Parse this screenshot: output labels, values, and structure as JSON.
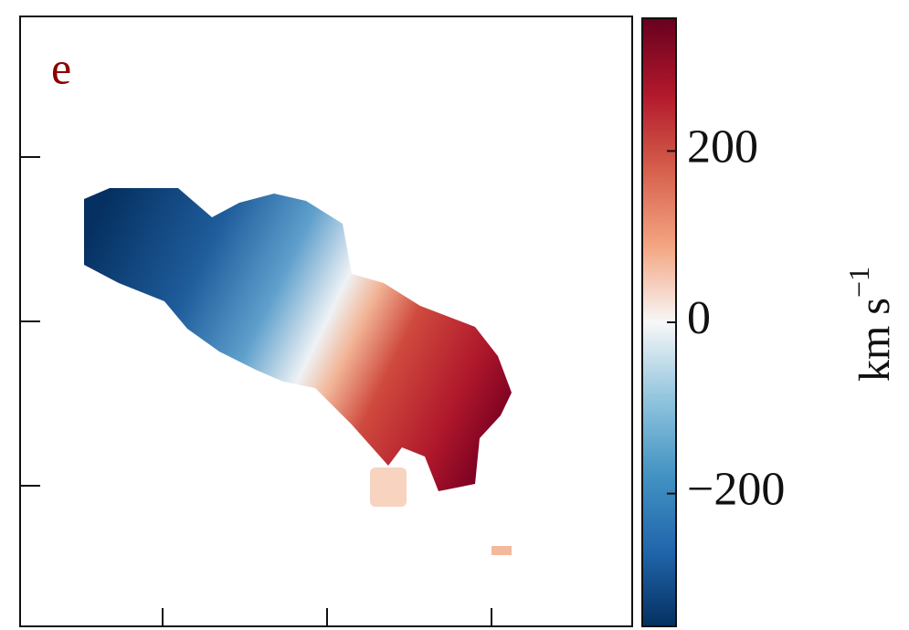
{
  "chart_data": {
    "type": "heatmap",
    "panel_label": "e",
    "colorbar_label": "km s",
    "colorbar_label_exponent": "−1",
    "clim": [
      -355,
      355
    ],
    "cticks": [
      {
        "value": -200,
        "label": "−200"
      },
      0,
      200
    ],
    "colormap": [
      "#053061",
      "#2166ac",
      "#4393c3",
      "#92c5de",
      "#f7f7f7",
      "#f4a582",
      "#d6604d",
      "#b2182b",
      "#67001f"
    ]
  }
}
